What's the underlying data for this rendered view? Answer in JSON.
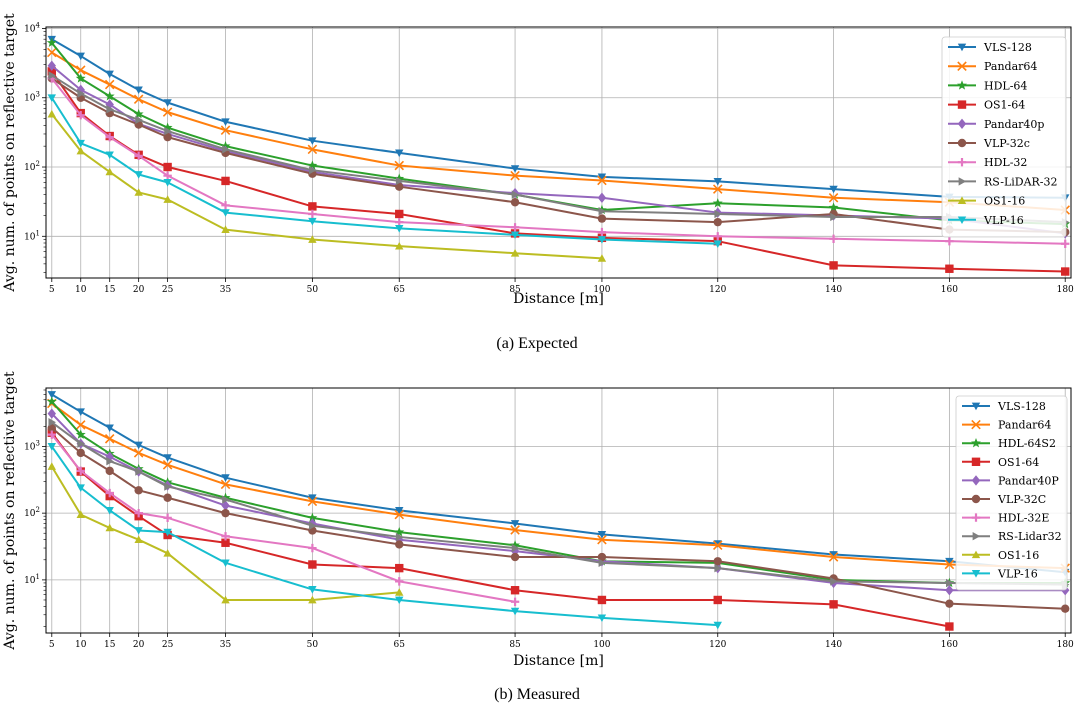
{
  "chart_data": [
    {
      "type": "line",
      "caption": "(a) Expected",
      "xlabel": "Distance [m]",
      "ylabel": "Avg. num. of points on reflective target",
      "yscale": "log",
      "ylim": [
        2.5,
        10500
      ],
      "xlim": [
        4,
        181
      ],
      "x": [
        5,
        10,
        15,
        20,
        25,
        35,
        50,
        65,
        85,
        100,
        120,
        140,
        160,
        180
      ],
      "grid": true,
      "legend_position": "top-right",
      "series": [
        {
          "name": "VLS-128",
          "color": "#1f77b4",
          "marker": "tri_down",
          "values": [
            7000,
            4000,
            2200,
            1300,
            850,
            450,
            240,
            160,
            95,
            72,
            62,
            48,
            37,
            36
          ]
        },
        {
          "name": "Pandar64",
          "color": "#ff7f0e",
          "marker": "x",
          "values": [
            4500,
            2500,
            1550,
            950,
            620,
            340,
            180,
            105,
            75,
            64,
            48,
            36,
            31,
            24
          ]
        },
        {
          "name": "HDL-64",
          "color": "#2ca02c",
          "marker": "star",
          "values": [
            6200,
            1900,
            1050,
            580,
            370,
            200,
            105,
            68,
            40,
            24,
            30,
            26,
            17,
            15
          ]
        },
        {
          "name": "OS1-64",
          "color": "#d62728",
          "marker": "square",
          "values": [
            2400,
            600,
            280,
            150,
            100,
            63,
            27,
            21,
            11,
            9.5,
            8.5,
            3.8,
            3.4,
            3.1
          ]
        },
        {
          "name": "Pandar40p",
          "color": "#9467bd",
          "marker": "diamond",
          "values": [
            2900,
            1300,
            800,
            420,
            300,
            170,
            85,
            55,
            42,
            36,
            22,
            20,
            18,
            11
          ]
        },
        {
          "name": "VLP-32c",
          "color": "#8c564b",
          "marker": "circle",
          "values": [
            1900,
            1000,
            600,
            410,
            270,
            160,
            80,
            52,
            31,
            18,
            16,
            21,
            12.5,
            11.5
          ]
        },
        {
          "name": "HDL-32",
          "color": "#e377c2",
          "marker": "plus",
          "values": [
            1900,
            560,
            270,
            145,
            75,
            28,
            21,
            16,
            13.5,
            11.5,
            10,
            9.2,
            8.5,
            7.8
          ]
        },
        {
          "name": "RS-LiDAR-32",
          "color": "#7f7f7f",
          "marker": "tri_right",
          "values": [
            2100,
            1150,
            680,
            480,
            330,
            180,
            90,
            63,
            40,
            23,
            21,
            19,
            19,
            16
          ]
        },
        {
          "name": "OS1-16",
          "color": "#bcbd22",
          "marker": "tri_up",
          "values": [
            580,
            170,
            85,
            43,
            34,
            12.5,
            9,
            7.2,
            5.7,
            4.8,
            null,
            null,
            null,
            null
          ]
        },
        {
          "name": "VLP-16",
          "color": "#17becf",
          "marker": "tri_down",
          "values": [
            1000,
            220,
            150,
            78,
            60,
            22,
            16.5,
            13,
            10.5,
            9,
            7.8,
            null,
            null,
            null
          ]
        }
      ]
    },
    {
      "type": "line",
      "caption": "(b) Measured",
      "xlabel": "Distance [m]",
      "ylabel": "Avg. num. of points on reflective target",
      "yscale": "log",
      "ylim": [
        1.6,
        7500
      ],
      "xlim": [
        4,
        181
      ],
      "x": [
        5,
        10,
        15,
        20,
        25,
        35,
        50,
        65,
        85,
        100,
        120,
        140,
        160,
        180
      ],
      "grid": true,
      "legend_position": "top-right",
      "series": [
        {
          "name": "VLS-128",
          "color": "#1f77b4",
          "marker": "tri_down",
          "values": [
            6000,
            3300,
            1900,
            1050,
            680,
            340,
            170,
            110,
            70,
            48,
            35,
            24,
            19,
            13
          ]
        },
        {
          "name": "Pandar64",
          "color": "#ff7f0e",
          "marker": "x",
          "values": [
            4400,
            2100,
            1300,
            800,
            530,
            270,
            150,
            95,
            56,
            40,
            33,
            22,
            17,
            15
          ]
        },
        {
          "name": "HDL-64S2",
          "color": "#2ca02c",
          "marker": "star",
          "values": [
            4700,
            1500,
            780,
            460,
            290,
            170,
            85,
            52,
            33,
            19,
            18,
            10,
            9,
            9
          ]
        },
        {
          "name": "OS1-64",
          "color": "#d62728",
          "marker": "square",
          "values": [
            1600,
            420,
            180,
            90,
            47,
            36,
            17,
            15,
            7,
            5,
            5,
            4.3,
            2,
            null
          ]
        },
        {
          "name": "Pandar40P",
          "color": "#9467bd",
          "marker": "diamond",
          "values": [
            3100,
            1100,
            700,
            420,
            260,
            130,
            70,
            40,
            27,
            19,
            15,
            9,
            7,
            7
          ]
        },
        {
          "name": "VLP-32C",
          "color": "#8c564b",
          "marker": "circle",
          "values": [
            1900,
            800,
            430,
            220,
            170,
            100,
            55,
            34,
            22,
            22,
            19,
            10.5,
            4.4,
            3.7
          ]
        },
        {
          "name": "HDL-32E",
          "color": "#e377c2",
          "marker": "plus",
          "values": [
            1500,
            430,
            200,
            100,
            85,
            45,
            30,
            9.5,
            4.7,
            null,
            null,
            null,
            null,
            null
          ]
        },
        {
          "name": "RS-Lidar32",
          "color": "#7f7f7f",
          "marker": "tri_right",
          "values": [
            2300,
            1100,
            600,
            420,
            250,
            160,
            65,
            44,
            30,
            18,
            15,
            9.5,
            9,
            8.5
          ]
        },
        {
          "name": "OS1-16",
          "color": "#bcbd22",
          "marker": "tri_up",
          "values": [
            500,
            95,
            60,
            40,
            25,
            5,
            5,
            6.5,
            null,
            null,
            null,
            null,
            null,
            null
          ]
        },
        {
          "name": "VLP-16",
          "color": "#17becf",
          "marker": "tri_down",
          "values": [
            1000,
            240,
            110,
            55,
            52,
            18,
            7.2,
            5,
            3.4,
            2.7,
            2.1,
            null,
            null,
            null
          ]
        }
      ]
    }
  ]
}
